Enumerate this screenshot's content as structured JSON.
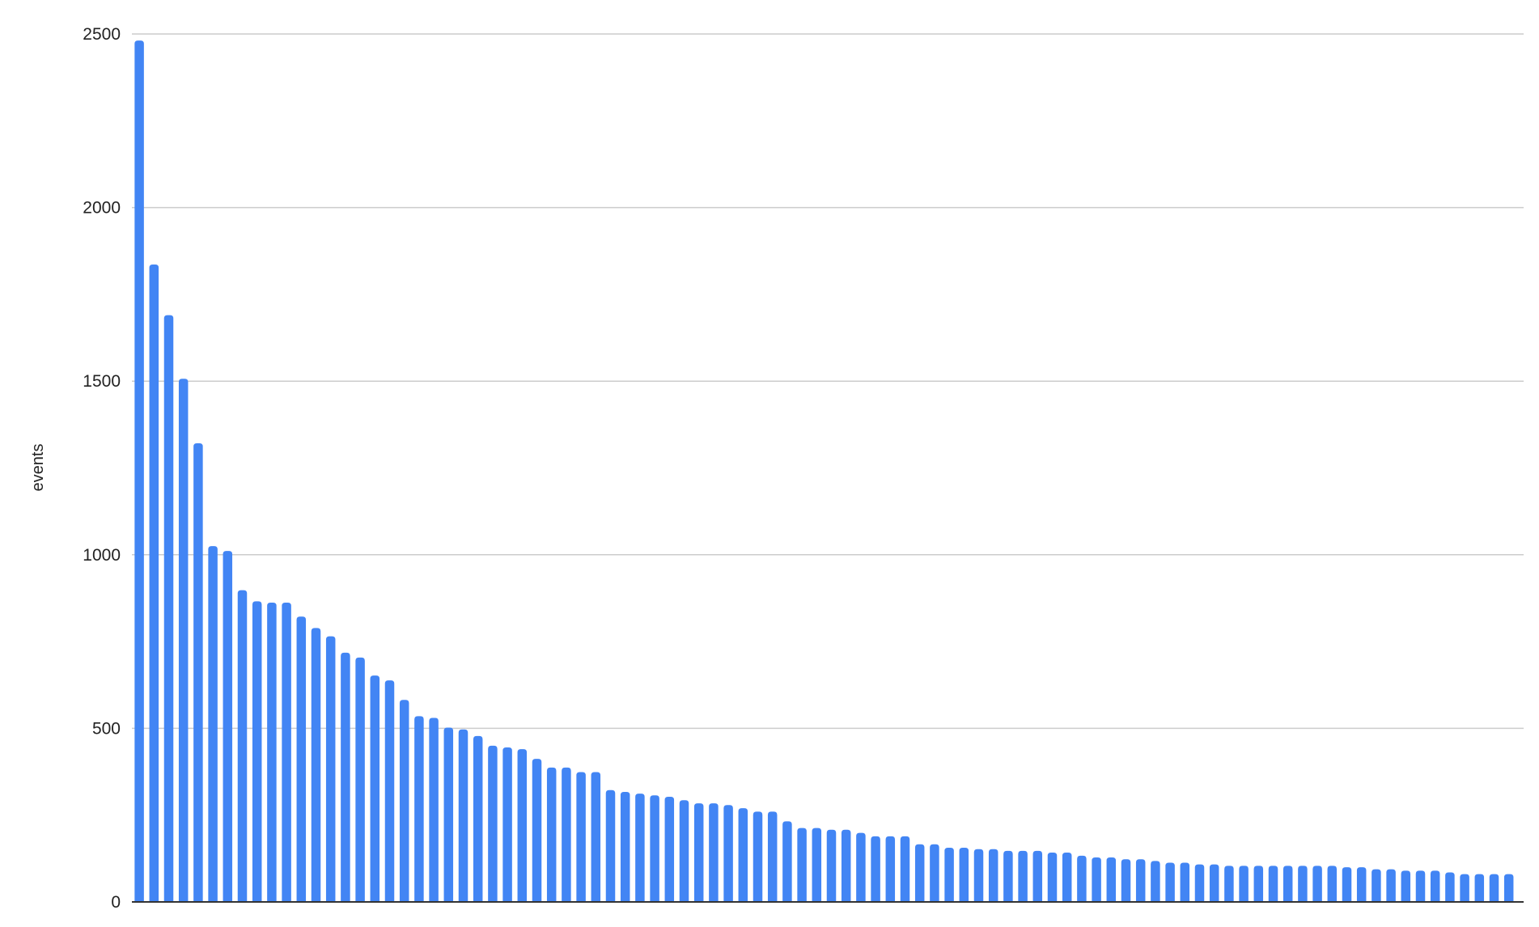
{
  "chart_data": {
    "type": "bar",
    "title": "",
    "xlabel": "",
    "ylabel": "events",
    "ylim": [
      0,
      2500
    ],
    "yticks": [
      "0",
      "500",
      "1000",
      "1500",
      "2000",
      "2500"
    ],
    "grid": true,
    "legend": "none",
    "bar_color": "#4285f4",
    "grid_color": "#cccccc",
    "axis_color": "#333333",
    "values": [
      2481,
      1836,
      1690,
      1507,
      1321,
      1025,
      1011,
      898,
      866,
      862,
      862,
      822,
      789,
      765,
      718,
      704,
      652,
      638,
      582,
      535,
      530,
      502,
      497,
      478,
      450,
      445,
      440,
      412,
      387,
      387,
      374,
      374,
      322,
      317,
      312,
      307,
      303,
      293,
      284,
      284,
      279,
      270,
      260,
      260,
      232,
      213,
      213,
      208,
      208,
      199,
      189,
      189,
      189,
      166,
      166,
      156,
      156,
      152,
      152,
      147,
      147,
      147,
      142,
      142,
      133,
      128,
      128,
      123,
      123,
      118,
      113,
      113,
      108,
      108,
      104,
      104,
      104,
      104,
      104,
      104,
      104,
      104,
      100,
      100,
      94,
      94,
      90,
      90,
      90,
      85,
      80,
      80,
      80,
      80
    ]
  }
}
